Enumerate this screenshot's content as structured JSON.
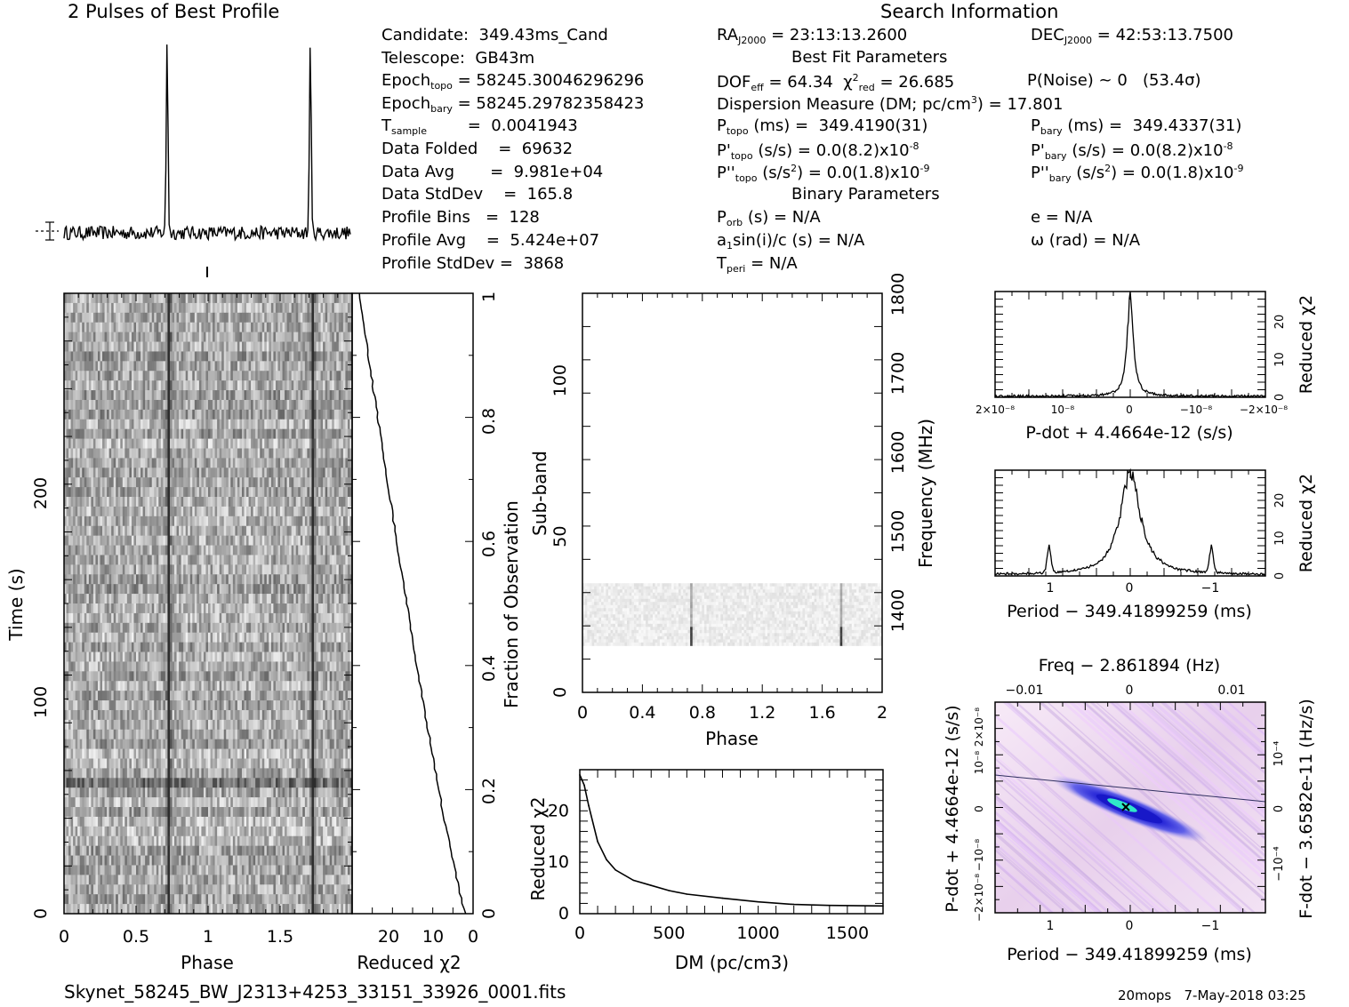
{
  "titles": {
    "profile": "2 Pulses of Best Profile",
    "search_info": "Search Information",
    "best_fit": "Best Fit Parameters",
    "binary": "Binary Parameters"
  },
  "candidate_info": [
    {
      "label": "Candidate:",
      "value": "349.43ms_Cand"
    },
    {
      "label": "Telescope:",
      "value": "GB43m"
    },
    {
      "label": "Epoch_topo",
      "value": "= 58245.30046296296"
    },
    {
      "label": "Epoch_bary",
      "value": "= 58245.29782358423"
    },
    {
      "label": "T_sample",
      "value": "=  0.0041943"
    },
    {
      "label": "Data Folded",
      "value": "=  69632"
    },
    {
      "label": "Data Avg",
      "value": "=  9.981e+04"
    },
    {
      "label": "Data StdDev",
      "value": "=  165.8"
    },
    {
      "label": "Profile Bins",
      "value": "=  128"
    },
    {
      "label": "Profile Avg",
      "value": "=  5.424e+07"
    },
    {
      "label": "Profile StdDev",
      "value": "=  3868"
    }
  ],
  "search_info": {
    "ra": "= 23:13:13.2600",
    "dec": "= 42:53:13.7500",
    "dof": "= 64.34",
    "chi2": "= 26.685",
    "pnoise": "P(Noise) ~ 0   (53.4σ)",
    "dm": "Dispersion Measure (DM; pc/cm",
    "dm_value": ") = 17.801",
    "ptopo": "(ms) =  349.4190(31)",
    "pbary": "(ms) =  349.4337(31)",
    "pdot_topo": "(s/s) = 0.0(8.2)x10",
    "pdot_topo_exp": "-8",
    "pdot_bary": "(s/s) = 0.0(8.2)x10",
    "pdot_bary_exp": "-8",
    "pddot_topo": "(s/s",
    "pddot_topo_tail": ") = 0.0(1.8)x10",
    "pddot_topo_exp": "-9",
    "pddot_bary": "(s/s",
    "pddot_bary_tail": ") = 0.0(1.8)x10",
    "pddot_bary_exp": "-9",
    "porb": "(s) = N/A",
    "a1": "sin(i)/c (s) = N/A",
    "tperi": "= N/A",
    "e": "e = N/A",
    "omega": "ω (rad) = N/A"
  },
  "footer": {
    "filename": "Skynet_58245_BW_J2313+4253_33151_33926_0001.fits",
    "stamp": "20mops   7-May-2018 03:25"
  },
  "colors": {
    "ink": "#000000",
    "greyscale_dark": "#202020",
    "pdot_map_low": "#f4e6f4",
    "pdot_map_mid": "#2020e0",
    "pdot_map_peak": "#20e0c0"
  },
  "chart_data": [
    {
      "type": "line",
      "title": "2 Pulses of Best Profile",
      "description": "pulse profile repeated twice",
      "x": "phase 0-2",
      "peaks_at_phase": [
        0.72,
        1.72
      ]
    },
    {
      "type": "heatmap",
      "name": "time-phase",
      "xlabel": "Phase",
      "ylabel": "Time (s)",
      "xlim": [
        0,
        2
      ],
      "ylim": [
        0,
        260
      ],
      "x_ticks": [
        "0",
        "0.5",
        "1",
        "1.5"
      ],
      "y_ticks": [
        "0",
        "100",
        "200"
      ],
      "pulse_phases": [
        0.72,
        1.72
      ]
    },
    {
      "type": "line",
      "name": "reduced-chi2-vs-fraction",
      "xlabel": "Reduced χ2",
      "ylabel": "Fraction of Observation",
      "x_ticks": [
        "20",
        "10",
        "0"
      ],
      "y_ticks": [
        "0",
        "0.2",
        "0.4",
        "0.6",
        "0.8",
        "1"
      ],
      "xlim": [
        27,
        0
      ],
      "ylim": [
        0,
        1
      ]
    },
    {
      "type": "heatmap",
      "name": "subband-phase",
      "xlabel": "Phase",
      "ylabel": "Sub-band",
      "y2label": "Frequency (MHz)",
      "x_ticks": [
        "0",
        "0.4",
        "0.8",
        "1.2",
        "1.6",
        "2"
      ],
      "y_ticks": [
        "0",
        "50",
        "100"
      ],
      "y2_ticks": [
        "1400",
        "1500",
        "1600",
        "1700",
        "1800"
      ],
      "xlim": [
        0,
        2
      ],
      "ylim": [
        0,
        128
      ],
      "signal_subbands": [
        15,
        35
      ]
    },
    {
      "type": "line",
      "name": "reduced-chi2-vs-dm",
      "xlabel": "DM (pc/cm3)",
      "ylabel": "Reduced χ2",
      "x_ticks": [
        "0",
        "500",
        "1000",
        "1500"
      ],
      "y_ticks": [
        "0",
        "10",
        "20"
      ],
      "xlim": [
        0,
        1700
      ],
      "ylim": [
        0,
        28
      ],
      "x": [
        0,
        25,
        50,
        100,
        150,
        200,
        300,
        400,
        500,
        600,
        800,
        1000,
        1200,
        1400,
        1700
      ],
      "y": [
        27,
        25,
        21,
        14,
        10.5,
        8.5,
        6.5,
        5.5,
        4.5,
        3.8,
        3,
        2.3,
        1.8,
        1.6,
        1.5
      ]
    },
    {
      "type": "line",
      "name": "reduced-chi2-vs-pdot",
      "xlabel": "P-dot + 4.4664e-12 (s/s)",
      "ylabel": "Reduced χ2",
      "x_ticks": [
        "2x10-8",
        "10-8",
        "0",
        "-10-8",
        "-2x10-8"
      ],
      "y_ticks": [
        "0",
        "10",
        "20"
      ],
      "ylim": [
        0,
        28
      ],
      "peak": 27
    },
    {
      "type": "line",
      "name": "reduced-chi2-vs-period",
      "xlabel": "Period − 349.41899259 (ms)",
      "ylabel": "Reduced χ2",
      "x_ticks": [
        "1",
        "0",
        "-1"
      ],
      "y_ticks": [
        "0",
        "10",
        "20"
      ],
      "ylim": [
        0,
        28
      ],
      "peak": 27
    },
    {
      "type": "heatmap",
      "name": "period-pdot",
      "top_label": "Freq − 2.861894 (Hz)",
      "top_ticks": [
        "-0.01",
        "0",
        "0.01"
      ],
      "xlabel": "Period − 349.41899259 (ms)",
      "x_ticks": [
        "1",
        "0",
        "-1"
      ],
      "ylabel": "P-dot + 4.4664e-12 (s/s)",
      "y_ticks": [
        "2x10-8",
        "10-8",
        "0",
        "-10-8",
        "-2x10-8"
      ],
      "y2label": "F-dot − 3.6582e-11 (Hz/s)",
      "y2_ticks": [
        "10-4",
        "0",
        "-10-4"
      ]
    }
  ]
}
